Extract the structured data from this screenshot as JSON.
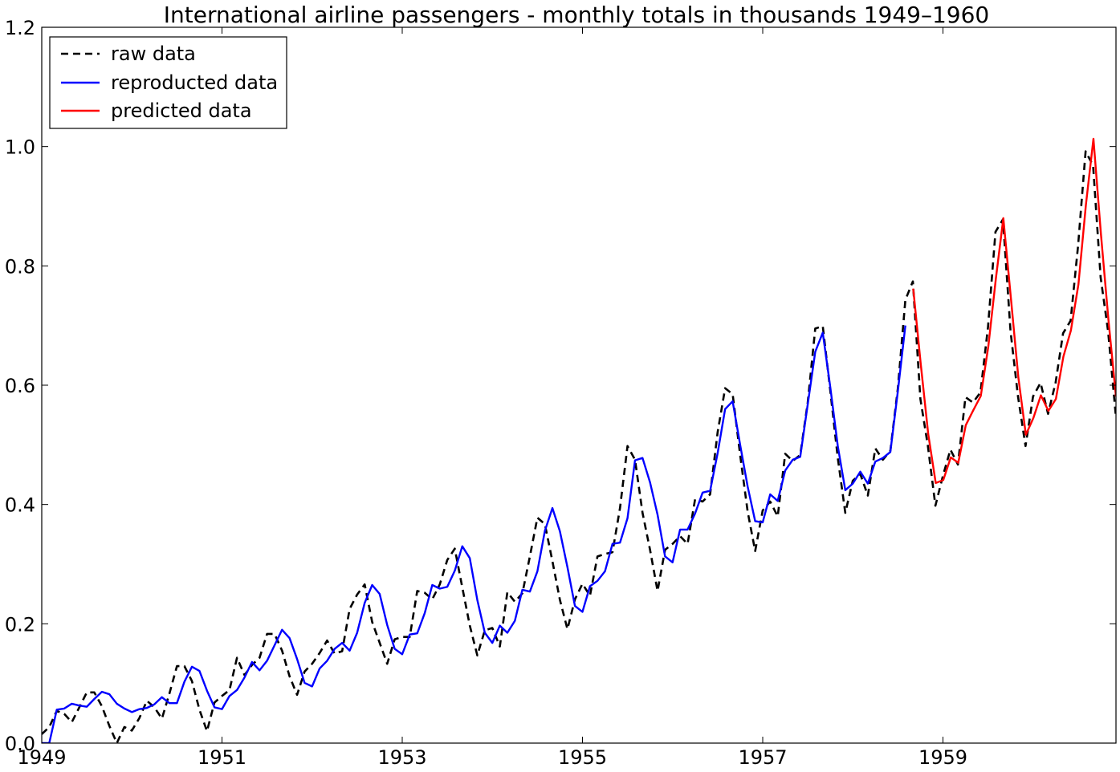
{
  "chart_data": {
    "type": "line",
    "title": "International airline passengers - monthly totals in thousands 1949–1960",
    "xlabel": "",
    "ylabel": "",
    "xlim": [
      1949.0,
      1960.92
    ],
    "ylim": [
      0.0,
      1.2
    ],
    "xticks": [
      1949,
      1951,
      1953,
      1955,
      1957,
      1959
    ],
    "xtick_labels": [
      "1949",
      "1951",
      "1953",
      "1955",
      "1957",
      "1959"
    ],
    "yticks": [
      0.0,
      0.2,
      0.4,
      0.6,
      0.8,
      1.0,
      1.2
    ],
    "ytick_labels": [
      "0.0",
      "0.2",
      "0.4",
      "0.6",
      "0.8",
      "1.0",
      "1.2"
    ],
    "grid": false,
    "legend_position": "top-left",
    "series": [
      {
        "name": "raw data",
        "color": "#000000",
        "style": "dashed",
        "x_start": 1949.0,
        "x_step": 0.08333,
        "values": [
          0.015,
          0.027,
          0.054,
          0.049,
          0.035,
          0.06,
          0.085,
          0.085,
          0.062,
          0.029,
          0.0,
          0.027,
          0.021,
          0.042,
          0.071,
          0.06,
          0.041,
          0.083,
          0.129,
          0.129,
          0.104,
          0.056,
          0.02,
          0.068,
          0.079,
          0.089,
          0.143,
          0.114,
          0.131,
          0.143,
          0.183,
          0.183,
          0.155,
          0.112,
          0.081,
          0.12,
          0.133,
          0.151,
          0.172,
          0.15,
          0.154,
          0.225,
          0.249,
          0.266,
          0.203,
          0.168,
          0.133,
          0.174,
          0.178,
          0.178,
          0.255,
          0.252,
          0.241,
          0.266,
          0.307,
          0.326,
          0.261,
          0.197,
          0.147,
          0.189,
          0.193,
          0.162,
          0.253,
          0.237,
          0.251,
          0.313,
          0.378,
          0.367,
          0.305,
          0.24,
          0.191,
          0.241,
          0.267,
          0.247,
          0.313,
          0.317,
          0.32,
          0.394,
          0.498,
          0.475,
          0.386,
          0.324,
          0.255,
          0.324,
          0.334,
          0.347,
          0.334,
          0.409,
          0.405,
          0.417,
          0.521,
          0.595,
          0.585,
          0.483,
          0.388,
          0.322,
          0.39,
          0.405,
          0.38,
          0.485,
          0.473,
          0.483,
          0.571,
          0.695,
          0.699,
          0.591,
          0.478,
          0.386,
          0.44,
          0.451,
          0.415,
          0.494,
          0.475,
          0.49,
          0.595,
          0.743,
          0.774,
          0.577,
          0.498,
          0.398,
          0.448,
          0.492,
          0.467,
          0.58,
          0.571,
          0.588,
          0.697,
          0.857,
          0.878,
          0.691,
          0.581,
          0.498,
          0.581,
          0.604,
          0.552,
          0.604,
          0.687,
          0.708,
          0.834,
          0.992,
          0.968,
          0.781,
          0.69,
          0.552,
          0.633
        ]
      },
      {
        "name": "reproducted data",
        "color": "#0000ff",
        "style": "solid",
        "x_start": 1949.0,
        "x_step": 0.08333,
        "values": [
          0.0,
          0.0,
          0.056,
          0.058,
          0.066,
          0.063,
          0.061,
          0.074,
          0.086,
          0.082,
          0.066,
          0.058,
          0.052,
          0.057,
          0.059,
          0.065,
          0.077,
          0.067,
          0.067,
          0.103,
          0.128,
          0.121,
          0.088,
          0.06,
          0.057,
          0.079,
          0.089,
          0.11,
          0.136,
          0.122,
          0.138,
          0.164,
          0.19,
          0.176,
          0.141,
          0.101,
          0.095,
          0.125,
          0.138,
          0.158,
          0.168,
          0.155,
          0.185,
          0.235,
          0.265,
          0.25,
          0.198,
          0.158,
          0.149,
          0.182,
          0.184,
          0.218,
          0.265,
          0.259,
          0.262,
          0.289,
          0.33,
          0.31,
          0.24,
          0.185,
          0.168,
          0.197,
          0.185,
          0.205,
          0.257,
          0.254,
          0.288,
          0.356,
          0.394,
          0.355,
          0.295,
          0.23,
          0.22,
          0.263,
          0.272,
          0.288,
          0.334,
          0.336,
          0.377,
          0.474,
          0.478,
          0.437,
          0.383,
          0.313,
          0.303,
          0.358,
          0.358,
          0.385,
          0.42,
          0.423,
          0.486,
          0.56,
          0.573,
          0.5,
          0.43,
          0.372,
          0.37,
          0.417,
          0.406,
          0.457,
          0.475,
          0.48,
          0.568,
          0.656,
          0.688,
          0.597,
          0.498,
          0.424,
          0.435,
          0.455,
          0.435,
          0.472,
          0.478,
          0.488,
          0.59,
          0.7
        ]
      },
      {
        "name": "predicted data",
        "color": "#ff0000",
        "style": "solid",
        "x_start": 1958.67,
        "x_step": 0.08333,
        "values": [
          0.762,
          0.636,
          0.518,
          0.436,
          0.441,
          0.479,
          0.47,
          0.533,
          0.558,
          0.582,
          0.665,
          0.778,
          0.88,
          0.747,
          0.613,
          0.517,
          0.545,
          0.583,
          0.557,
          0.577,
          0.648,
          0.692,
          0.769,
          0.903,
          1.013,
          0.853,
          0.709,
          0.581
        ]
      }
    ]
  }
}
